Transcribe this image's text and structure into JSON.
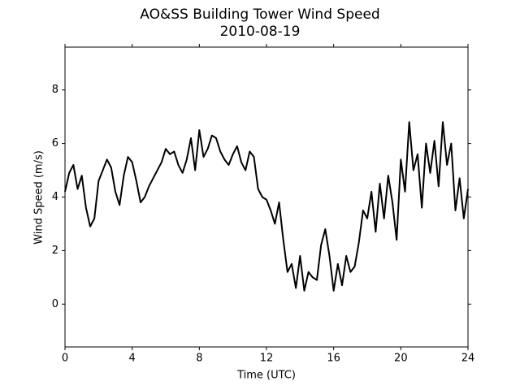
{
  "chart_data": {
    "type": "line",
    "title": "AO&SS Building Tower Wind Speed",
    "subtitle": "2010-08-19",
    "x_label": "Time (UTC)",
    "y_label": "Wind Speed (m/s)",
    "color": "#000000",
    "x": [
      0,
      0.25,
      0.5,
      0.75,
      1,
      1.25,
      1.5,
      1.75,
      2,
      2.25,
      2.5,
      2.75,
      3,
      3.25,
      3.5,
      3.75,
      4,
      4.25,
      4.5,
      4.75,
      5,
      5.25,
      5.5,
      5.75,
      6,
      6.25,
      6.5,
      6.75,
      7,
      7.25,
      7.5,
      7.75,
      8,
      8.25,
      8.5,
      8.75,
      9,
      9.25,
      9.5,
      9.75,
      10,
      10.25,
      10.5,
      10.75,
      11,
      11.25,
      11.5,
      11.75,
      12,
      12.25,
      12.5,
      12.75,
      13,
      13.25,
      13.5,
      13.75,
      14,
      14.25,
      14.5,
      14.75,
      15,
      15.25,
      15.5,
      15.75,
      16,
      16.25,
      16.5,
      16.75,
      17,
      17.25,
      17.5,
      17.75,
      18,
      18.25,
      18.5,
      18.75,
      19,
      19.25,
      19.5,
      19.75,
      20,
      20.25,
      20.5,
      20.75,
      21,
      21.25,
      21.5,
      21.75,
      22,
      22.25,
      22.5,
      22.75,
      23,
      23.25,
      23.5,
      23.75,
      24
    ],
    "values": [
      4.2,
      4.9,
      5.2,
      4.3,
      4.8,
      3.6,
      2.9,
      3.2,
      4.6,
      5.0,
      5.4,
      5.1,
      4.2,
      3.7,
      4.8,
      5.5,
      5.3,
      4.6,
      3.8,
      4.0,
      4.4,
      4.7,
      5.0,
      5.3,
      5.8,
      5.6,
      5.7,
      5.2,
      4.9,
      5.4,
      6.2,
      5.0,
      6.5,
      5.5,
      5.8,
      6.3,
      6.2,
      5.7,
      5.4,
      5.2,
      5.6,
      5.9,
      5.3,
      5.0,
      5.7,
      5.5,
      4.3,
      4.0,
      3.9,
      3.5,
      3.0,
      3.8,
      2.4,
      1.2,
      1.5,
      0.6,
      1.8,
      0.5,
      1.2,
      1.0,
      0.9,
      2.2,
      2.8,
      1.8,
      0.5,
      1.5,
      0.7,
      1.8,
      1.2,
      1.4,
      2.3,
      3.5,
      3.2,
      4.2,
      2.7,
      4.5,
      3.2,
      4.8,
      3.8,
      2.4,
      5.4,
      4.2,
      6.8,
      5.0,
      5.6,
      3.6,
      6.0,
      4.9,
      6.1,
      4.4,
      6.8,
      5.2,
      6.0,
      3.5,
      4.7,
      3.2,
      4.3
    ],
    "xlim": [
      0,
      24
    ],
    "xticks": [
      0,
      4,
      8,
      12,
      16,
      20,
      24
    ],
    "ylim": [
      -1.6,
      9.6
    ],
    "yticks": [
      0,
      2,
      4,
      6,
      8
    ]
  }
}
